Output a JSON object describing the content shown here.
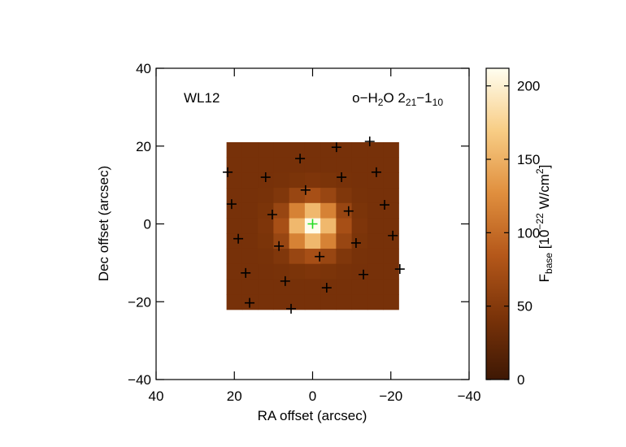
{
  "chart_data": {
    "type": "heatmap",
    "annotations": [
      "WL12"
    ],
    "line_label": [
      {
        "text": "o−H"
      },
      {
        "text": "2",
        "sub": true
      },
      {
        "text": "O 2"
      },
      {
        "text": "21",
        "sub": true
      },
      {
        "text": "−1"
      },
      {
        "text": "10",
        "sub": true
      }
    ],
    "x_label": "RA offset (arcsec)",
    "y_label": "Dec offset (arcsec)",
    "xlim": [
      40,
      -40
    ],
    "ylim": [
      -40,
      40
    ],
    "xticks": [
      40,
      20,
      0,
      {
        "value": -20,
        "label": "−20"
      },
      {
        "value": -40,
        "label": "−40"
      }
    ],
    "yticks": [
      {
        "value": -40,
        "label": "−40"
      },
      {
        "value": -20,
        "label": "−20"
      },
      0,
      20,
      40
    ],
    "x_extent": [
      22,
      -22
    ],
    "y_extent": [
      21,
      -22
    ],
    "z": [
      [
        40,
        40,
        40,
        40,
        40,
        40,
        40,
        40,
        40,
        40,
        40
      ],
      [
        40,
        40,
        40,
        40,
        40,
        40,
        40,
        40,
        40,
        40,
        40
      ],
      [
        40,
        40,
        40,
        41,
        43,
        45,
        43,
        41,
        40,
        40,
        40
      ],
      [
        40,
        40,
        41,
        47,
        64,
        75,
        64,
        47,
        41,
        40,
        40
      ],
      [
        40,
        40,
        43,
        64,
        117,
        155,
        117,
        64,
        43,
        40,
        40
      ],
      [
        40,
        40,
        45,
        75,
        155,
        210,
        155,
        75,
        45,
        40,
        40
      ],
      [
        40,
        40,
        43,
        64,
        117,
        155,
        117,
        64,
        43,
        40,
        40
      ],
      [
        40,
        40,
        41,
        47,
        64,
        75,
        64,
        47,
        41,
        40,
        40
      ],
      [
        40,
        40,
        40,
        41,
        43,
        45,
        43,
        41,
        40,
        40,
        40
      ],
      [
        40,
        40,
        40,
        40,
        40,
        40,
        40,
        40,
        40,
        40,
        40
      ],
      [
        40,
        40,
        40,
        40,
        40,
        40,
        40,
        40,
        40,
        40,
        40
      ]
    ],
    "colormap": [
      "#3e1804",
      "#7a3309",
      "#b5581a",
      "#e08f3e",
      "#f8cd85",
      "#fffef0"
    ],
    "clim": [
      0,
      212
    ],
    "cticks": [
      0,
      50,
      100,
      150,
      200
    ],
    "colorbar_label": [
      {
        "text": "F"
      },
      {
        "text": "base",
        "sub": true
      },
      {
        "text": " [10"
      },
      {
        "text": "−22",
        "sup": true
      },
      {
        "text": " W/cm"
      },
      {
        "text": "2",
        "sup": true
      },
      {
        "text": "]"
      }
    ],
    "markers": {
      "color": "#000000",
      "x": [
        -6.1,
        -14.6,
        3.2,
        21.7,
        12.0,
        -16.3,
        -7.4,
        1.8,
        20.7,
        -18.4,
        10.3,
        -9.2,
        19.0,
        -20.5,
        8.6,
        -11.1,
        -1.8,
        17.1,
        -13.0,
        7.0,
        -3.6,
        -22.3,
        16.1,
        5.5
      ],
      "y": [
        19.7,
        21.2,
        16.8,
        13.3,
        12.0,
        13.3,
        12.0,
        8.7,
        5.1,
        4.9,
        2.4,
        3.3,
        -3.8,
        -3.0,
        -5.7,
        -4.9,
        -8.4,
        -12.6,
        -13.0,
        -14.7,
        -16.4,
        -11.6,
        -20.3,
        -21.8
      ]
    },
    "center_marker": {
      "color": "#22dd22",
      "x": 0,
      "y": 0
    }
  }
}
